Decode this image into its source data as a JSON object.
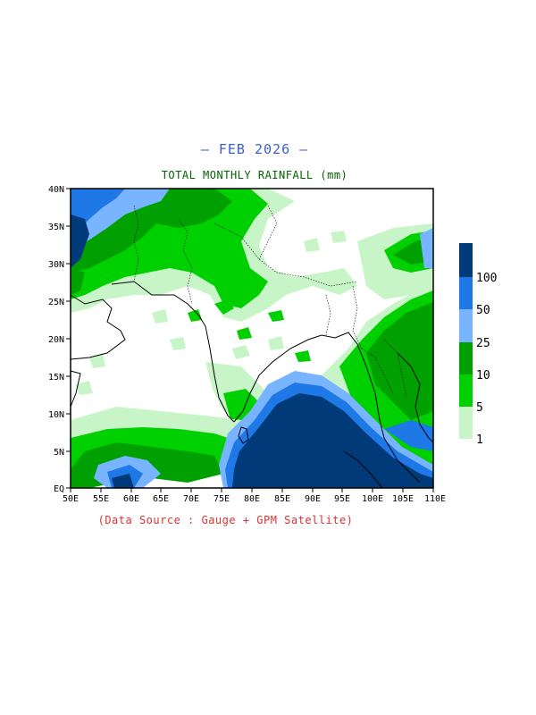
{
  "header": {
    "month_title": "— FEB 2026 —",
    "map_title": "TOTAL MONTHLY RAINFALL (mm)"
  },
  "footer": {
    "source": "(Data Source : Gauge + GPM Satellite)"
  },
  "axes": {
    "lat_labels": [
      "40N",
      "35N",
      "30N",
      "25N",
      "20N",
      "15N",
      "10N",
      "5N",
      "EQ"
    ],
    "lon_labels": [
      "50E",
      "55E",
      "60E",
      "65E",
      "70E",
      "75E",
      "80E",
      "85E",
      "90E",
      "95E",
      "100E",
      "105E",
      "110E"
    ]
  },
  "colorbar": {
    "labels": [
      "1",
      "5",
      "10",
      "25",
      "50",
      "100"
    ],
    "colors": [
      "#c8f5c8",
      "#00d000",
      "#00a000",
      "#78b4ff",
      "#1e78e6",
      "#003a78"
    ]
  },
  "palette": {
    "dry": "#ffffff",
    "light": "#c8f5c8",
    "moderate": "#00d000",
    "heavy": "#00a000",
    "very_heavy": "#78b4ff",
    "intense": "#1e78e6",
    "extreme": "#003a78"
  }
}
